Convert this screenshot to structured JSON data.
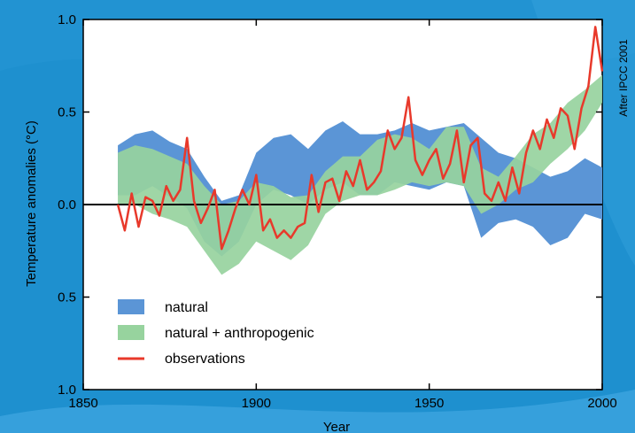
{
  "chart_data": {
    "type": "area",
    "xlabel": "Year",
    "ylabel": "Temperature anomalies (°C)",
    "xlim": [
      1850,
      2000
    ],
    "ylim": [
      -1.0,
      1.0
    ],
    "x_ticks": [
      {
        "value": 1850,
        "label": "1850"
      },
      {
        "value": 1900,
        "label": "1900"
      },
      {
        "value": 1950,
        "label": "1950"
      },
      {
        "value": 2000,
        "label": "2000"
      }
    ],
    "y_ticks": [
      {
        "value": 1.0,
        "label": "1.0"
      },
      {
        "value": 0.5,
        "label": "0.5"
      },
      {
        "value": 0.0,
        "label": "0.0"
      },
      {
        "value": -0.5,
        "label": "0.5"
      },
      {
        "value": -1.0,
        "label": "1.0"
      }
    ],
    "credit": "After IPCC 2001",
    "legend_position": "bottom-left",
    "years": [
      1860,
      1865,
      1870,
      1875,
      1880,
      1885,
      1890,
      1895,
      1900,
      1905,
      1910,
      1915,
      1920,
      1925,
      1930,
      1935,
      1940,
      1945,
      1950,
      1955,
      1960,
      1965,
      1970,
      1975,
      1980,
      1985,
      1990,
      1995,
      2000
    ],
    "series": [
      {
        "name": "natural",
        "kind": "band",
        "color": "#5b95d6",
        "upper": [
          0.32,
          0.38,
          0.4,
          0.34,
          0.3,
          0.15,
          0.02,
          0.05,
          0.28,
          0.36,
          0.38,
          0.3,
          0.4,
          0.45,
          0.38,
          0.38,
          0.4,
          0.44,
          0.4,
          0.42,
          0.44,
          0.36,
          0.28,
          0.25,
          0.2,
          0.15,
          0.18,
          0.25,
          0.2
        ],
        "lower": [
          0.05,
          0.05,
          0.1,
          0.04,
          -0.02,
          -0.2,
          -0.28,
          -0.2,
          0.0,
          0.08,
          0.05,
          0.0,
          0.08,
          0.12,
          0.05,
          0.05,
          0.12,
          0.1,
          0.08,
          0.12,
          0.1,
          -0.18,
          -0.1,
          -0.08,
          -0.12,
          -0.22,
          -0.18,
          -0.05,
          -0.08
        ]
      },
      {
        "name": "natural + anthropogenic",
        "kind": "band",
        "color": "#97d39e",
        "upper": [
          0.28,
          0.32,
          0.3,
          0.26,
          0.22,
          0.1,
          0.0,
          0.02,
          0.12,
          0.1,
          0.04,
          0.05,
          0.18,
          0.26,
          0.26,
          0.35,
          0.38,
          0.36,
          0.3,
          0.42,
          0.42,
          0.2,
          0.15,
          0.26,
          0.38,
          0.44,
          0.55,
          0.62,
          0.7
        ],
        "lower": [
          0.0,
          0.0,
          -0.05,
          -0.08,
          -0.12,
          -0.25,
          -0.38,
          -0.32,
          -0.2,
          -0.25,
          -0.3,
          -0.22,
          -0.05,
          0.02,
          0.05,
          0.05,
          0.08,
          0.12,
          0.1,
          0.12,
          0.1,
          -0.05,
          0.0,
          0.08,
          0.12,
          0.22,
          0.3,
          0.4,
          0.55
        ]
      },
      {
        "name": "observations",
        "kind": "line",
        "color": "#e8392b",
        "years": [
          1860,
          1862,
          1864,
          1866,
          1868,
          1870,
          1872,
          1874,
          1876,
          1878,
          1880,
          1882,
          1884,
          1886,
          1888,
          1890,
          1892,
          1894,
          1896,
          1898,
          1900,
          1902,
          1904,
          1906,
          1908,
          1910,
          1912,
          1914,
          1916,
          1918,
          1920,
          1922,
          1924,
          1926,
          1928,
          1930,
          1932,
          1934,
          1936,
          1938,
          1940,
          1942,
          1944,
          1946,
          1948,
          1950,
          1952,
          1954,
          1956,
          1958,
          1960,
          1962,
          1964,
          1966,
          1968,
          1970,
          1972,
          1974,
          1976,
          1978,
          1980,
          1982,
          1984,
          1986,
          1988,
          1990,
          1992,
          1994,
          1996,
          1998,
          2000
        ],
        "values": [
          0.0,
          -0.14,
          0.06,
          -0.12,
          0.04,
          0.02,
          -0.06,
          0.1,
          0.02,
          0.08,
          0.36,
          0.02,
          -0.1,
          -0.02,
          0.08,
          -0.24,
          -0.14,
          -0.02,
          0.08,
          0.0,
          0.16,
          -0.14,
          -0.08,
          -0.18,
          -0.14,
          -0.18,
          -0.12,
          -0.1,
          0.16,
          -0.04,
          0.12,
          0.14,
          0.02,
          0.18,
          0.1,
          0.24,
          0.08,
          0.12,
          0.18,
          0.4,
          0.3,
          0.36,
          0.58,
          0.24,
          0.16,
          0.24,
          0.3,
          0.14,
          0.22,
          0.4,
          0.12,
          0.32,
          0.36,
          0.06,
          0.02,
          0.12,
          0.02,
          0.2,
          0.06,
          0.28,
          0.4,
          0.3,
          0.46,
          0.36,
          0.52,
          0.48,
          0.3,
          0.52,
          0.64,
          0.96,
          0.72
        ]
      }
    ]
  }
}
